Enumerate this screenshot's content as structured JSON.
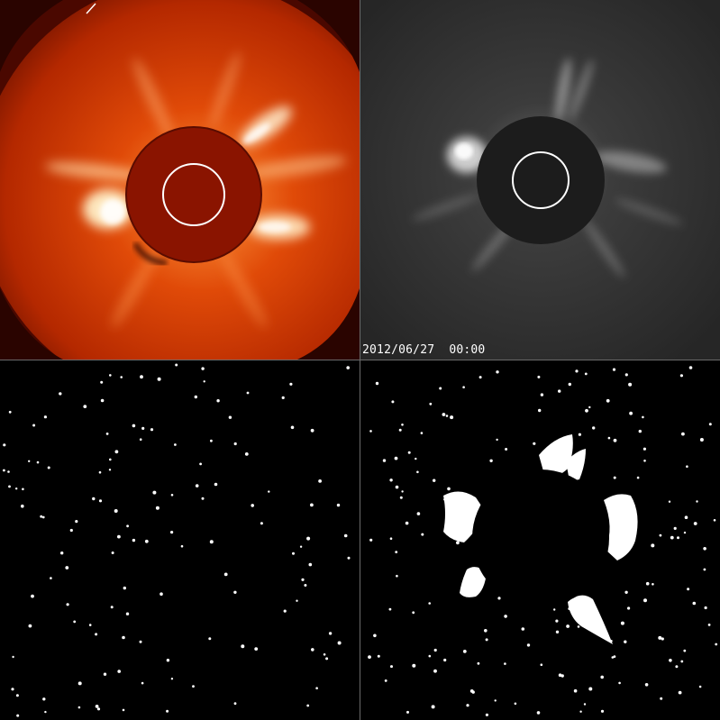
{
  "timestamp": "2012/06/27  00:00",
  "colors": {
    "lasco_orange": "#c83c00",
    "lasco_bright": "#ffe8b0",
    "occulter_red": "#8a1400",
    "gray_field": "#2a2a2a",
    "occulter_gray": "#1c1c1c",
    "sun_circle": "#ffffff",
    "star_white": "#ffffff"
  },
  "panels": [
    {
      "name": "coronagraph-color",
      "style": "orange-red"
    },
    {
      "name": "coronagraph-difference",
      "style": "grayscale"
    },
    {
      "name": "star-mask",
      "style": "binary"
    },
    {
      "name": "cme-mask",
      "style": "binary"
    }
  ]
}
